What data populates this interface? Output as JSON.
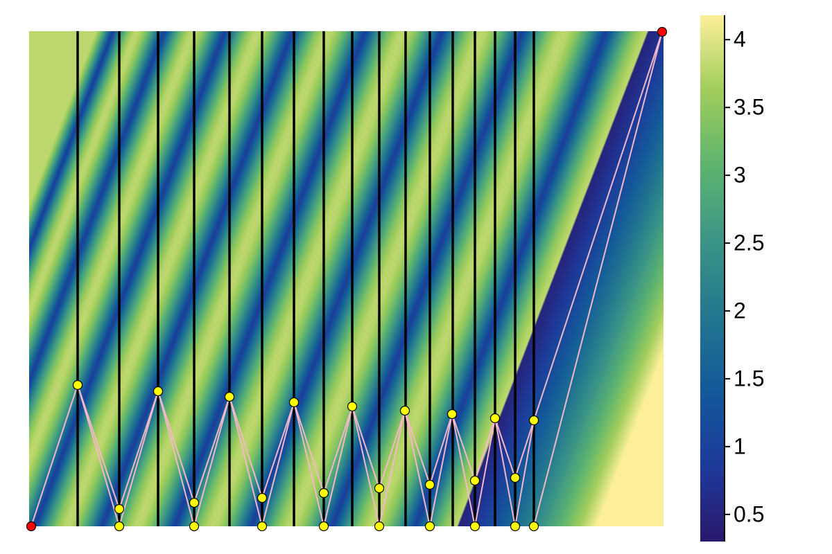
{
  "chart_data": {
    "type": "colorbar",
    "colors": [
      "#2a186c",
      "#1d3a9a",
      "#13599a",
      "#22778f",
      "#3b9586",
      "#5db46f",
      "#a0cd5b",
      "#fdef9a"
    ],
    "ylim": [
      0.3,
      4.18
    ],
    "yticks": [
      0.5,
      1.0,
      1.5,
      2.0,
      2.5,
      3.0,
      3.5,
      4.0
    ]
  }
}
